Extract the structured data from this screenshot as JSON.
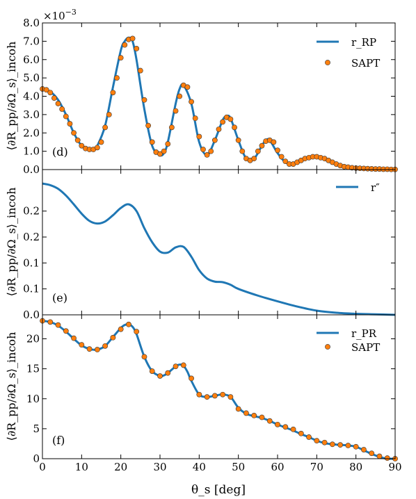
{
  "figure": {
    "xlabel": "θ_s [deg]",
    "xticks": [
      "0",
      "10",
      "20",
      "30",
      "40",
      "50",
      "60",
      "70",
      "80",
      "90"
    ]
  },
  "chart_data": [
    {
      "type": "line",
      "panel_label": "(d)",
      "ylabel": "⟨∂R_pp/∂Ω_s⟩_incoh",
      "multiplier": "×10",
      "multiplier_exp": "−3",
      "xlim": [
        0,
        90
      ],
      "ylim": [
        0.0,
        8.0
      ],
      "yticks": [
        "0.0",
        "1.0",
        "2.0",
        "3.0",
        "4.0",
        "5.0",
        "6.0",
        "7.0",
        "8.0"
      ],
      "legend_position": "top-right",
      "colors": {
        "line": "#1f77b4",
        "marker": "#ff7f0e"
      },
      "series": [
        {
          "name": "r_RP",
          "kind": "line",
          "x": [
            0,
            2,
            4,
            6,
            8,
            10,
            12,
            13,
            14,
            16,
            18,
            20,
            21,
            22,
            23,
            24,
            26,
            28,
            30,
            31,
            32,
            34,
            35,
            36,
            38,
            40,
            42,
            44,
            46,
            47,
            48,
            50,
            52,
            54,
            56,
            57,
            58,
            60,
            62,
            64,
            66,
            68,
            69,
            70,
            72,
            74,
            76,
            78,
            80,
            82,
            84,
            86,
            88,
            90
          ],
          "y": [
            4.4,
            4.25,
            3.8,
            3.0,
            2.0,
            1.3,
            1.1,
            1.1,
            1.3,
            2.4,
            4.5,
            6.5,
            7.0,
            7.2,
            7.0,
            6.0,
            3.3,
            1.3,
            0.8,
            0.9,
            1.5,
            3.6,
            4.4,
            4.6,
            3.6,
            1.5,
            0.8,
            1.6,
            2.7,
            2.9,
            2.8,
            1.6,
            0.6,
            0.6,
            1.3,
            1.6,
            1.6,
            0.9,
            0.4,
            0.3,
            0.5,
            0.68,
            0.7,
            0.7,
            0.55,
            0.35,
            0.2,
            0.13,
            0.09,
            0.06,
            0.04,
            0.03,
            0.02,
            0.01
          ]
        },
        {
          "name": "SAPT",
          "kind": "points",
          "x": [
            0,
            1,
            2,
            3,
            4,
            5,
            6,
            7,
            8,
            9,
            10,
            11,
            12,
            13,
            14,
            15,
            16,
            17,
            18,
            19,
            20,
            21,
            22,
            23,
            24,
            25,
            26,
            27,
            28,
            29,
            30,
            31,
            32,
            33,
            34,
            35,
            36,
            37,
            38,
            39,
            40,
            41,
            42,
            43,
            44,
            45,
            46,
            47,
            48,
            49,
            50,
            51,
            52,
            53,
            54,
            55,
            56,
            57,
            58,
            59,
            60,
            61,
            62,
            63,
            64,
            65,
            66,
            67,
            68,
            69,
            70,
            71,
            72,
            73,
            74,
            75,
            76,
            77,
            78,
            79,
            80,
            81,
            82,
            83,
            84,
            85,
            86,
            87,
            88,
            89,
            90
          ],
          "y": [
            4.4,
            4.35,
            4.2,
            3.9,
            3.6,
            3.3,
            2.9,
            2.5,
            2.0,
            1.6,
            1.3,
            1.15,
            1.1,
            1.1,
            1.2,
            1.5,
            2.3,
            3.0,
            4.2,
            5.0,
            6.1,
            6.8,
            7.1,
            7.15,
            6.6,
            5.4,
            3.8,
            2.4,
            1.5,
            0.95,
            0.85,
            1.0,
            1.4,
            2.3,
            3.2,
            4.0,
            4.6,
            4.5,
            3.7,
            2.8,
            1.8,
            1.1,
            0.8,
            1.0,
            1.6,
            2.2,
            2.6,
            2.85,
            2.75,
            2.3,
            1.6,
            1.0,
            0.6,
            0.5,
            0.6,
            1.0,
            1.3,
            1.55,
            1.6,
            1.5,
            1.05,
            0.7,
            0.45,
            0.3,
            0.3,
            0.4,
            0.5,
            0.6,
            0.65,
            0.7,
            0.7,
            0.65,
            0.6,
            0.5,
            0.4,
            0.3,
            0.22,
            0.16,
            0.13,
            0.1,
            0.08,
            0.07,
            0.06,
            0.05,
            0.04,
            0.03,
            0.03,
            0.02,
            0.02,
            0.01,
            0.01
          ]
        }
      ]
    },
    {
      "type": "line",
      "panel_label": "(e)",
      "ylabel": "⟨∂R_pp/∂Ω_s⟩_incoh",
      "xlim": [
        0,
        90
      ],
      "ylim": [
        0.0,
        0.28
      ],
      "yticks": [
        "0.0",
        "0.1",
        "0.1",
        "0.2",
        "0.2"
      ],
      "legend_position": "top-right",
      "colors": {
        "line": "#1f77b4"
      },
      "series": [
        {
          "name": "r″",
          "kind": "line",
          "x": [
            0,
            2,
            4,
            6,
            8,
            10,
            12,
            14,
            16,
            18,
            20,
            22,
            24,
            26,
            28,
            30,
            32,
            34,
            36,
            38,
            40,
            42,
            44,
            46,
            48,
            50,
            55,
            60,
            65,
            70,
            75,
            80,
            85,
            90
          ],
          "y": [
            0.253,
            0.25,
            0.243,
            0.23,
            0.213,
            0.195,
            0.181,
            0.176,
            0.18,
            0.192,
            0.206,
            0.213,
            0.2,
            0.167,
            0.14,
            0.122,
            0.12,
            0.13,
            0.131,
            0.112,
            0.086,
            0.07,
            0.064,
            0.063,
            0.058,
            0.05,
            0.037,
            0.026,
            0.016,
            0.008,
            0.004,
            0.002,
            0.001,
            0.0
          ]
        }
      ]
    },
    {
      "type": "line",
      "panel_label": "(f)",
      "ylabel": "⟨∂R_pp/∂Ω_s⟩_incoh",
      "xlim": [
        0,
        90
      ],
      "ylim": [
        0,
        24
      ],
      "yticks": [
        "0",
        "5",
        "10",
        "15",
        "20"
      ],
      "legend_position": "top-right",
      "colors": {
        "line": "#1f77b4",
        "marker": "#ff7f0e"
      },
      "series": [
        {
          "name": "r_PR",
          "kind": "line",
          "x": [
            0,
            2,
            4,
            6,
            8,
            10,
            12,
            14,
            16,
            18,
            20,
            21,
            22,
            23,
            24,
            26,
            28,
            30,
            31,
            32,
            34,
            35,
            36,
            37,
            38,
            40,
            42,
            44,
            46,
            48,
            50,
            52,
            54,
            56,
            58,
            60,
            62,
            64,
            66,
            68,
            70,
            72,
            74,
            76,
            78,
            80,
            82,
            84,
            86,
            88,
            90
          ],
          "y": [
            23.0,
            22.8,
            22.2,
            21.2,
            20.0,
            18.9,
            18.3,
            18.2,
            18.8,
            20.3,
            21.8,
            22.3,
            22.4,
            22.0,
            20.8,
            17.0,
            14.6,
            13.8,
            13.9,
            14.3,
            15.4,
            15.7,
            15.5,
            14.5,
            13.0,
            10.7,
            10.3,
            10.5,
            10.7,
            10.3,
            8.5,
            7.5,
            7.1,
            6.8,
            6.3,
            5.7,
            5.2,
            4.7,
            4.1,
            3.6,
            3.0,
            2.6,
            2.4,
            2.3,
            2.2,
            2.0,
            1.4,
            0.8,
            0.3,
            0.0,
            0.0
          ]
        },
        {
          "name": "SAPT",
          "kind": "points",
          "x": [
            0,
            2,
            4,
            6,
            8,
            10,
            12,
            14,
            16,
            18,
            20,
            22,
            24,
            26,
            28,
            30,
            32,
            34,
            36,
            38,
            40,
            42,
            44,
            46,
            48,
            50,
            52,
            54,
            56,
            58,
            60,
            62,
            64,
            66,
            68,
            70,
            72,
            74,
            76,
            78,
            80,
            82,
            84,
            86,
            88,
            90
          ],
          "y": [
            23.0,
            22.8,
            22.3,
            21.3,
            20.1,
            19.0,
            18.3,
            18.2,
            18.8,
            20.2,
            21.6,
            22.4,
            21.2,
            17.0,
            14.6,
            13.8,
            14.3,
            15.4,
            15.6,
            13.4,
            10.7,
            10.3,
            10.5,
            10.7,
            10.3,
            8.3,
            7.6,
            7.2,
            6.9,
            6.3,
            5.7,
            5.3,
            4.9,
            4.2,
            3.6,
            3.0,
            2.7,
            2.4,
            2.3,
            2.2,
            2.0,
            1.5,
            0.9,
            0.4,
            0.1,
            0.0
          ]
        }
      ]
    }
  ]
}
